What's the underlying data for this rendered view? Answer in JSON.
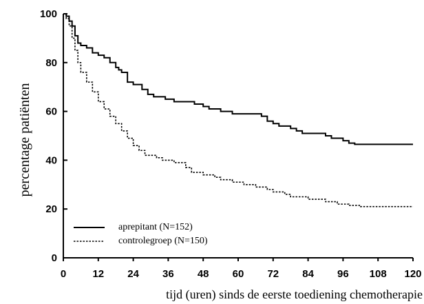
{
  "chart_data": {
    "type": "line",
    "xlabel": "tijd (uren) sinds de eerste toediening chemotherapie",
    "ylabel": "percentage patiënten",
    "xlim": [
      0,
      120
    ],
    "ylim": [
      0,
      100
    ],
    "x_ticks": [
      0,
      12,
      24,
      36,
      48,
      60,
      72,
      84,
      96,
      108,
      120
    ],
    "y_ticks": [
      0,
      20,
      40,
      60,
      80,
      100
    ],
    "grid": false,
    "legend_position": "bottom-left",
    "series": [
      {
        "name": "aprepitant (N=152)",
        "style": "solid",
        "color": "#000000",
        "points": [
          [
            0,
            100
          ],
          [
            1,
            99
          ],
          [
            2,
            97
          ],
          [
            3,
            95
          ],
          [
            4,
            91
          ],
          [
            5,
            88
          ],
          [
            6,
            87
          ],
          [
            8,
            86
          ],
          [
            10,
            84
          ],
          [
            12,
            83
          ],
          [
            14,
            82
          ],
          [
            16,
            80
          ],
          [
            18,
            78
          ],
          [
            19,
            77
          ],
          [
            20,
            76
          ],
          [
            22,
            72
          ],
          [
            24,
            71
          ],
          [
            27,
            69
          ],
          [
            29,
            67
          ],
          [
            31,
            66
          ],
          [
            35,
            65
          ],
          [
            38,
            64
          ],
          [
            45,
            63
          ],
          [
            48,
            62
          ],
          [
            50,
            61
          ],
          [
            54,
            60
          ],
          [
            58,
            59
          ],
          [
            66,
            59
          ],
          [
            68,
            58
          ],
          [
            70,
            56
          ],
          [
            72,
            55
          ],
          [
            74,
            54
          ],
          [
            78,
            53
          ],
          [
            80,
            52
          ],
          [
            82,
            51
          ],
          [
            88,
            51
          ],
          [
            90,
            50
          ],
          [
            92,
            49
          ],
          [
            96,
            48
          ],
          [
            98,
            47
          ],
          [
            100,
            46.5
          ],
          [
            120,
            46.5
          ]
        ]
      },
      {
        "name": "controlegroep (N=150)",
        "style": "dotted",
        "color": "#000000",
        "points": [
          [
            0,
            100
          ],
          [
            1,
            98
          ],
          [
            2,
            95
          ],
          [
            3,
            90
          ],
          [
            4,
            85
          ],
          [
            5,
            80
          ],
          [
            6,
            76
          ],
          [
            8,
            72
          ],
          [
            10,
            68
          ],
          [
            12,
            64
          ],
          [
            14,
            61
          ],
          [
            16,
            58
          ],
          [
            18,
            55
          ],
          [
            20,
            52
          ],
          [
            22,
            49
          ],
          [
            24,
            46
          ],
          [
            26,
            44
          ],
          [
            28,
            42
          ],
          [
            30,
            42
          ],
          [
            32,
            41
          ],
          [
            34,
            40
          ],
          [
            38,
            39
          ],
          [
            42,
            37
          ],
          [
            44,
            35
          ],
          [
            48,
            34
          ],
          [
            52,
            33
          ],
          [
            54,
            32
          ],
          [
            58,
            31
          ],
          [
            62,
            30
          ],
          [
            66,
            29
          ],
          [
            70,
            28
          ],
          [
            72,
            27
          ],
          [
            76,
            26
          ],
          [
            78,
            25
          ],
          [
            84,
            24
          ],
          [
            88,
            24
          ],
          [
            90,
            23
          ],
          [
            94,
            22
          ],
          [
            98,
            21.5
          ],
          [
            102,
            21
          ],
          [
            120,
            21
          ]
        ]
      }
    ]
  }
}
